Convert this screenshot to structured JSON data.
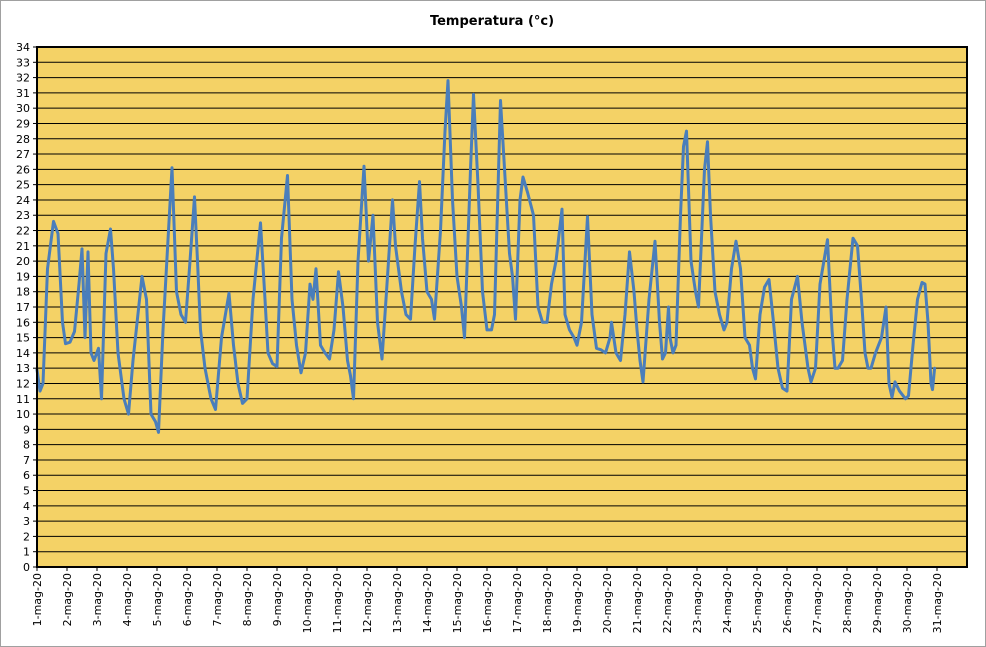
{
  "chart_data": {
    "type": "line",
    "title": "Temperatura (°c)",
    "xlabel": "",
    "ylabel": "",
    "ylim": [
      0,
      34
    ],
    "yticks": [
      0,
      1,
      2,
      3,
      4,
      5,
      6,
      7,
      8,
      9,
      10,
      11,
      12,
      13,
      14,
      15,
      16,
      17,
      18,
      19,
      20,
      21,
      22,
      23,
      24,
      25,
      26,
      27,
      28,
      29,
      30,
      31,
      32,
      33,
      34
    ],
    "categories": [
      "1-mag-20",
      "2-mag-20",
      "3-mag-20",
      "4-mag-20",
      "5-mag-20",
      "6-mag-20",
      "7-mag-20",
      "8-mag-20",
      "9-mag-20",
      "10-mag-20",
      "11-mag-20",
      "12-mag-20",
      "13-mag-20",
      "14-mag-20",
      "15-mag-20",
      "16-mag-20",
      "17-mag-20",
      "18-mag-20",
      "19-mag-20",
      "20-mag-20",
      "21-mag-20",
      "22-mag-20",
      "23-mag-20",
      "24-mag-20",
      "25-mag-20",
      "26-mag-20",
      "27-mag-20",
      "28-mag-20",
      "29-mag-20",
      "30-mag-20",
      "31-mag-20"
    ],
    "x_range_days": [
      0,
      31
    ],
    "grid": true,
    "legend": "none",
    "colors": {
      "plot_bg": "#f4d266",
      "line": "#4a7ebb",
      "grid": "#000000",
      "frame": "#000000"
    },
    "series": [
      {
        "values": [
          [
            0.0,
            12.9
          ],
          [
            0.1,
            11.5
          ],
          [
            0.2,
            12.0
          ],
          [
            0.35,
            19.5
          ],
          [
            0.55,
            22.6
          ],
          [
            0.7,
            21.8
          ],
          [
            0.85,
            16.0
          ],
          [
            0.95,
            14.6
          ],
          [
            1.1,
            14.7
          ],
          [
            1.25,
            15.4
          ],
          [
            1.4,
            18.5
          ],
          [
            1.5,
            20.8
          ],
          [
            1.6,
            15.0
          ],
          [
            1.7,
            20.6
          ],
          [
            1.8,
            14.0
          ],
          [
            1.9,
            13.5
          ],
          [
            2.05,
            14.3
          ],
          [
            2.15,
            11.0
          ],
          [
            2.3,
            20.5
          ],
          [
            2.45,
            22.1
          ],
          [
            2.55,
            19.5
          ],
          [
            2.7,
            14.0
          ],
          [
            2.9,
            11.0
          ],
          [
            3.05,
            10.0
          ],
          [
            3.2,
            13.5
          ],
          [
            3.5,
            19.0
          ],
          [
            3.65,
            17.5
          ],
          [
            3.8,
            10.0
          ],
          [
            3.95,
            9.5
          ],
          [
            4.05,
            8.8
          ],
          [
            4.2,
            15.5
          ],
          [
            4.5,
            26.1
          ],
          [
            4.65,
            18.0
          ],
          [
            4.8,
            16.5
          ],
          [
            4.95,
            16.0
          ],
          [
            5.1,
            20.0
          ],
          [
            5.25,
            24.2
          ],
          [
            5.35,
            20.0
          ],
          [
            5.45,
            15.5
          ],
          [
            5.6,
            13.0
          ],
          [
            5.8,
            11.0
          ],
          [
            5.95,
            10.3
          ],
          [
            6.15,
            15.0
          ],
          [
            6.4,
            17.9
          ],
          [
            6.55,
            14.5
          ],
          [
            6.7,
            12.0
          ],
          [
            6.85,
            10.7
          ],
          [
            7.0,
            11.0
          ],
          [
            7.2,
            17.5
          ],
          [
            7.45,
            22.5
          ],
          [
            7.6,
            17.5
          ],
          [
            7.7,
            14.0
          ],
          [
            7.85,
            13.3
          ],
          [
            8.0,
            13.1
          ],
          [
            8.15,
            21.5
          ],
          [
            8.35,
            25.6
          ],
          [
            8.5,
            17.5
          ],
          [
            8.65,
            14.5
          ],
          [
            8.8,
            12.7
          ],
          [
            8.95,
            14.0
          ],
          [
            9.1,
            18.5
          ],
          [
            9.2,
            17.5
          ],
          [
            9.3,
            19.5
          ],
          [
            9.45,
            14.5
          ],
          [
            9.6,
            14.0
          ],
          [
            9.75,
            13.6
          ],
          [
            9.9,
            15.5
          ],
          [
            10.05,
            19.3
          ],
          [
            10.2,
            17.0
          ],
          [
            10.35,
            13.5
          ],
          [
            10.45,
            12.5
          ],
          [
            10.55,
            11.0
          ],
          [
            10.7,
            20.0
          ],
          [
            10.9,
            26.2
          ],
          [
            11.05,
            20.0
          ],
          [
            11.2,
            23.0
          ],
          [
            11.35,
            16.0
          ],
          [
            11.5,
            13.6
          ],
          [
            11.65,
            18.0
          ],
          [
            11.85,
            24.0
          ],
          [
            11.95,
            21.0
          ],
          [
            12.15,
            18.0
          ],
          [
            12.3,
            16.5
          ],
          [
            12.45,
            16.2
          ],
          [
            12.6,
            21.0
          ],
          [
            12.75,
            25.2
          ],
          [
            12.85,
            21.5
          ],
          [
            13.0,
            18.0
          ],
          [
            13.15,
            17.5
          ],
          [
            13.25,
            16.2
          ],
          [
            13.45,
            22.0
          ],
          [
            13.6,
            28.5
          ],
          [
            13.7,
            31.8
          ],
          [
            13.85,
            24.0
          ],
          [
            14.0,
            19.0
          ],
          [
            14.15,
            17.0
          ],
          [
            14.25,
            15.0
          ],
          [
            14.45,
            26.0
          ],
          [
            14.55,
            30.9
          ],
          [
            14.7,
            25.0
          ],
          [
            14.85,
            18.0
          ],
          [
            15.0,
            15.5
          ],
          [
            15.15,
            15.5
          ],
          [
            15.25,
            16.5
          ],
          [
            15.45,
            30.5
          ],
          [
            15.6,
            25.5
          ],
          [
            15.75,
            20.5
          ],
          [
            15.85,
            19.0
          ],
          [
            15.95,
            16.2
          ],
          [
            16.1,
            24.0
          ],
          [
            16.2,
            25.5
          ],
          [
            16.35,
            24.5
          ],
          [
            16.55,
            23.0
          ],
          [
            16.7,
            17.0
          ],
          [
            16.85,
            16.0
          ],
          [
            17.0,
            16.0
          ],
          [
            17.15,
            18.5
          ],
          [
            17.3,
            20.0
          ],
          [
            17.5,
            23.4
          ],
          [
            17.6,
            16.5
          ],
          [
            17.75,
            15.5
          ],
          [
            17.9,
            15.0
          ],
          [
            18.0,
            14.5
          ],
          [
            18.15,
            16.0
          ],
          [
            18.35,
            22.9
          ],
          [
            18.5,
            16.5
          ],
          [
            18.65,
            14.3
          ],
          [
            18.8,
            14.2
          ],
          [
            18.95,
            14.0
          ],
          [
            19.1,
            15.0
          ],
          [
            19.15,
            16.0
          ],
          [
            19.3,
            14.0
          ],
          [
            19.45,
            13.5
          ],
          [
            19.6,
            16.5
          ],
          [
            19.75,
            20.6
          ],
          [
            19.9,
            18.0
          ],
          [
            20.0,
            15.5
          ],
          [
            20.1,
            13.5
          ],
          [
            20.2,
            12.1
          ],
          [
            20.4,
            17.5
          ],
          [
            20.6,
            21.3
          ],
          [
            20.75,
            16.0
          ],
          [
            20.85,
            13.6
          ],
          [
            20.95,
            14.0
          ],
          [
            21.05,
            17.0
          ],
          [
            21.1,
            15.0
          ],
          [
            21.2,
            14.0
          ],
          [
            21.3,
            14.5
          ],
          [
            21.45,
            23.0
          ],
          [
            21.55,
            27.5
          ],
          [
            21.65,
            28.5
          ],
          [
            21.8,
            20.0
          ],
          [
            21.95,
            18.0
          ],
          [
            22.05,
            17.0
          ],
          [
            22.25,
            26.0
          ],
          [
            22.35,
            27.8
          ],
          [
            22.45,
            23.0
          ],
          [
            22.6,
            18.0
          ],
          [
            22.75,
            16.5
          ],
          [
            22.9,
            15.5
          ],
          [
            23.0,
            16.0
          ],
          [
            23.15,
            19.5
          ],
          [
            23.3,
            21.3
          ],
          [
            23.45,
            19.5
          ],
          [
            23.6,
            15.0
          ],
          [
            23.75,
            14.5
          ],
          [
            23.85,
            13.0
          ],
          [
            23.95,
            12.3
          ],
          [
            24.1,
            16.5
          ],
          [
            24.25,
            18.3
          ],
          [
            24.4,
            18.8
          ],
          [
            24.55,
            16.0
          ],
          [
            24.7,
            13.0
          ],
          [
            24.85,
            11.7
          ],
          [
            25.0,
            11.5
          ],
          [
            25.15,
            17.5
          ],
          [
            25.35,
            19.0
          ],
          [
            25.5,
            16.0
          ],
          [
            25.6,
            14.5
          ],
          [
            25.7,
            13.0
          ],
          [
            25.8,
            12.1
          ],
          [
            25.95,
            13.0
          ],
          [
            26.1,
            18.5
          ],
          [
            26.35,
            21.4
          ],
          [
            26.5,
            15.5
          ],
          [
            26.6,
            13.0
          ],
          [
            26.7,
            13.0
          ],
          [
            26.85,
            13.5
          ],
          [
            27.0,
            17.5
          ],
          [
            27.2,
            21.5
          ],
          [
            27.35,
            21.0
          ],
          [
            27.5,
            17.0
          ],
          [
            27.6,
            14.0
          ],
          [
            27.7,
            13.0
          ],
          [
            27.8,
            13.0
          ],
          [
            27.95,
            14.0
          ],
          [
            28.15,
            15.0
          ],
          [
            28.3,
            17.0
          ],
          [
            28.4,
            12.0
          ],
          [
            28.5,
            11.1
          ],
          [
            28.6,
            12.1
          ],
          [
            28.75,
            11.5
          ],
          [
            28.95,
            11.0
          ],
          [
            29.05,
            11.2
          ],
          [
            29.2,
            14.5
          ],
          [
            29.35,
            17.5
          ],
          [
            29.5,
            18.6
          ],
          [
            29.6,
            18.5
          ],
          [
            29.7,
            16.0
          ],
          [
            29.8,
            12.0
          ],
          [
            29.85,
            11.6
          ],
          [
            29.92,
            13.0
          ]
        ]
      }
    ]
  }
}
